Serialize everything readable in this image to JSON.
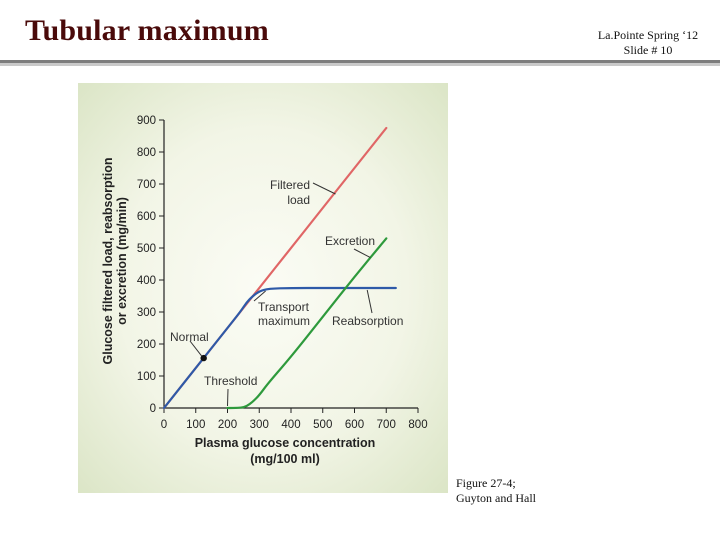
{
  "header": {
    "title": "Tubular maximum",
    "author_line": "La.Pointe Spring ‘12",
    "slide_line": "Slide # 10"
  },
  "caption": {
    "line1": "Figure 27-4;",
    "line2": "Guyton and Hall"
  },
  "chart_data": {
    "type": "line",
    "xlabel_line1": "Plasma glucose concentration",
    "xlabel_line2": "(mg/100 ml)",
    "ylabel_line1": "Glucose filtered load, reabsorption",
    "ylabel_line2": "or excretion (mg/min)",
    "xlim": [
      0,
      800
    ],
    "ylim": [
      0,
      900
    ],
    "x_ticks": [
      0,
      100,
      200,
      300,
      400,
      500,
      600,
      700,
      800
    ],
    "y_ticks": [
      0,
      100,
      200,
      300,
      400,
      500,
      600,
      700,
      800,
      900
    ],
    "grid": false,
    "series": [
      {
        "key": "filtered",
        "color": "#e06666",
        "x": [
          0,
          100,
          200,
          300,
          400,
          500,
          600,
          700
        ],
        "y": [
          0,
          125,
          250,
          375,
          500,
          625,
          750,
          875
        ]
      },
      {
        "key": "reabsorption",
        "color": "#2e5aa8",
        "x": [
          0,
          100,
          200,
          240,
          260,
          280,
          300,
          330,
          400,
          500,
          600,
          730
        ],
        "y": [
          0,
          125,
          250,
          300,
          330,
          350,
          365,
          373,
          375,
          375,
          375,
          375
        ]
      },
      {
        "key": "excretion",
        "color": "#2e9a3c",
        "x": [
          200,
          240,
          260,
          280,
          300,
          330,
          400,
          500,
          600,
          700
        ],
        "y": [
          0,
          0,
          5,
          20,
          40,
          80,
          160,
          285,
          410,
          530
        ]
      }
    ],
    "point": {
      "label": "Normal",
      "x": 125,
      "y": 156
    },
    "annotations": {
      "filtered_1": "Filtered",
      "filtered_2": "load",
      "excretion": "Excretion",
      "transport_1": "Transport",
      "transport_2": "maximum",
      "reabsorption": "Reabsorption",
      "threshold": "Threshold",
      "normal": "Normal"
    }
  }
}
